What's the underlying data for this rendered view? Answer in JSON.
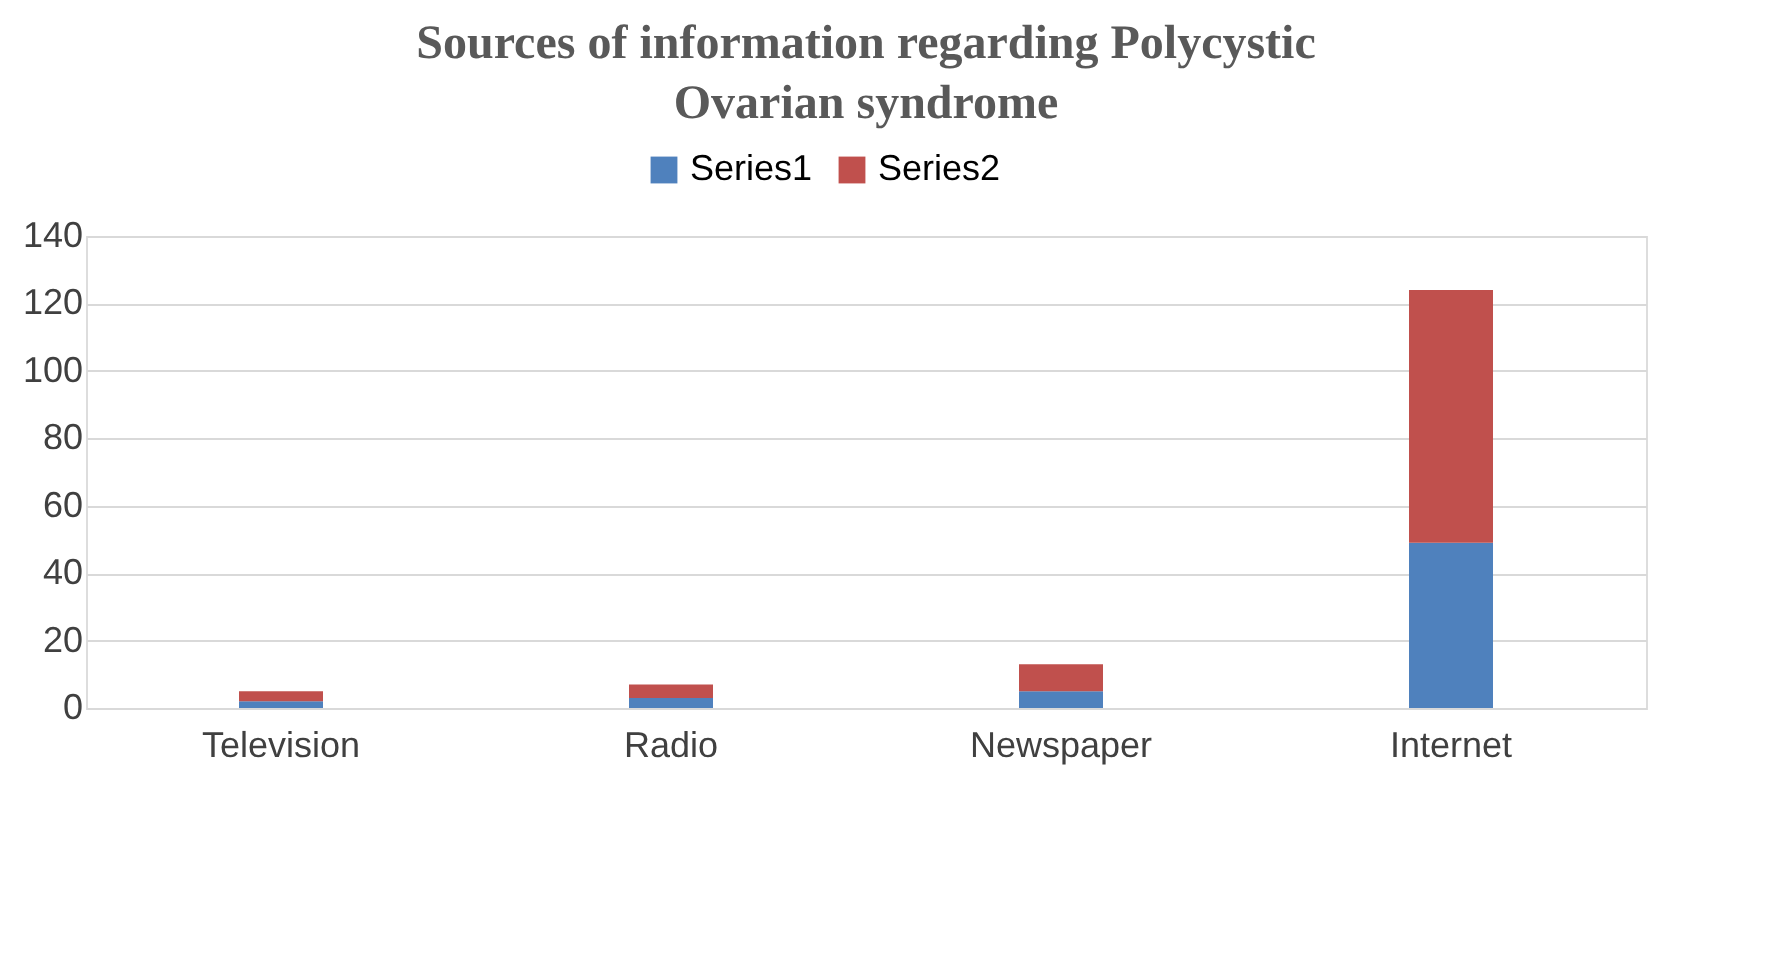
{
  "chart_data": {
    "type": "bar",
    "title": "Sources of information regarding Polycystic Ovarian syndrome",
    "categories": [
      "Television",
      "Radio",
      "Newspaper",
      "Internet"
    ],
    "series": [
      {
        "name": "Series1",
        "color": "#4f81bd",
        "values": [
          2,
          3,
          5,
          49
        ]
      },
      {
        "name": "Series2",
        "color": "#c0504d",
        "values": [
          3,
          4,
          8,
          75
        ]
      }
    ],
    "stacked": true,
    "ylim": [
      0,
      140
    ],
    "yticks": [
      0,
      20,
      40,
      60,
      80,
      100,
      120,
      140
    ],
    "grid": "y",
    "legend": "top"
  }
}
